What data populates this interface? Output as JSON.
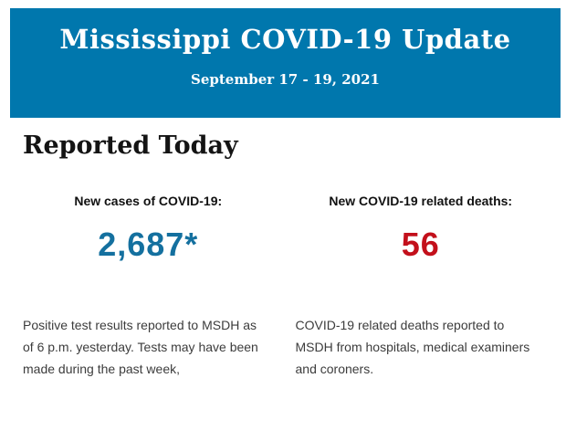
{
  "banner": {
    "title": "Mississippi COVID-19 Update",
    "subtitle": "September 17 - 19, 2021",
    "background_color": "#0077AD",
    "text_color": "#FFFFFF"
  },
  "section": {
    "heading": "Reported Today"
  },
  "stats": {
    "cases": {
      "label": "New cases of COVID-19:",
      "value": "2,687*",
      "value_color": "#14709F",
      "description": "Positive test results reported to MSDH as\nof 6 p.m. yesterday. Tests may have been\nmade during the past week,"
    },
    "deaths": {
      "label": "New COVID-19 related deaths:",
      "value": "56",
      "value_color": "#C3101B",
      "description": "COVID-19 related deaths reported to\nMSDH from hospitals, medical examiners\nand coroners."
    }
  }
}
